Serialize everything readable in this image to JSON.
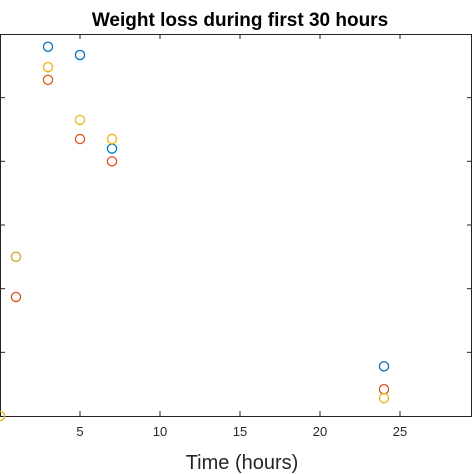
{
  "chart_data": {
    "type": "scatter",
    "title": "Weight loss during first 30 hours",
    "xlabel": "Time (hours)",
    "ylabel": "",
    "xlim": [
      0,
      29.5
    ],
    "ylim": [
      0,
      6
    ],
    "xticks": [
      5,
      10,
      15,
      20,
      25
    ],
    "yticks": [
      1,
      2,
      3,
      4,
      5
    ],
    "grid": false,
    "series": [
      {
        "color": "#0072BD",
        "points": [
          [
            1,
            2.5
          ],
          [
            3,
            5.8
          ],
          [
            5,
            5.67
          ],
          [
            7,
            4.2
          ],
          [
            24,
            0.78
          ]
        ]
      },
      {
        "color": "#D95319",
        "points": [
          [
            1,
            1.87
          ],
          [
            3,
            5.28
          ],
          [
            5,
            4.35
          ],
          [
            7,
            4.0
          ],
          [
            24,
            0.42
          ]
        ]
      },
      {
        "color": "#EDB120",
        "points": [
          [
            0,
            0
          ],
          [
            1,
            2.5
          ],
          [
            3,
            5.48
          ],
          [
            5,
            4.65
          ],
          [
            7,
            4.35
          ],
          [
            24,
            0.28
          ]
        ]
      }
    ]
  }
}
